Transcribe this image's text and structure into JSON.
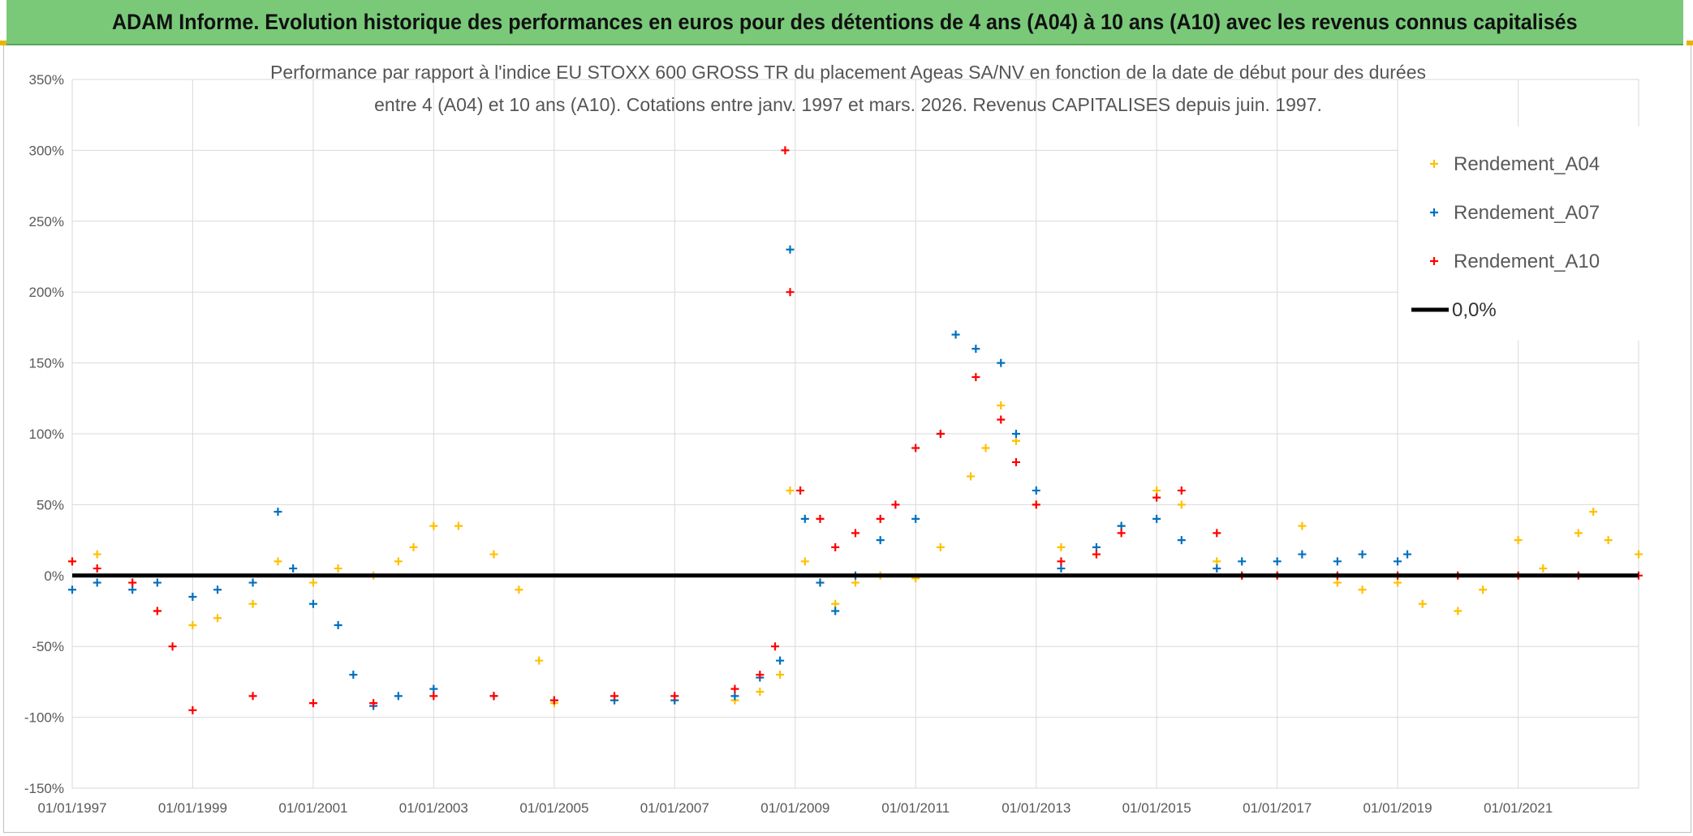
{
  "header": {
    "banner_title": "ADAM Informe. Evolution historique des performances en euros pour des détentions de 4 ans (A04) à 10 ans (A10) avec les revenus connus capitalisés"
  },
  "colors": {
    "banner_bg": "#79c979",
    "series_a04": "#ffc000",
    "series_a07": "#0070c0",
    "series_a10": "#ff0000",
    "zero_line": "#000000"
  },
  "chart_data": {
    "type": "scatter",
    "title_line1": "Performance par rapport à l'indice EU STOXX 600 GROSS TR  du placement Ageas SA/NV en fonction de la date de début pour des durées",
    "title_line2": "entre 4 (A04) et 10 ans (A10). Cotations entre janv. 1997 et mars. 2026. Revenus CAPITALISES depuis juin. 1997.",
    "xlabel": "",
    "ylabel": "",
    "y_unit": "%",
    "ylim": [
      -150,
      350
    ],
    "yticks": [
      -150,
      -100,
      -50,
      0,
      50,
      100,
      150,
      200,
      250,
      300,
      350
    ],
    "ytick_labels": [
      "-150%",
      "-100%",
      "-50%",
      "0%",
      "50%",
      "100%",
      "150%",
      "200%",
      "250%",
      "300%",
      "350%"
    ],
    "xlim": [
      "1997-01-01",
      "2023-01-01"
    ],
    "xticks": [
      "1997-01-01",
      "1999-01-01",
      "2001-01-01",
      "2003-01-01",
      "2005-01-01",
      "2007-01-01",
      "2009-01-01",
      "2011-01-01",
      "2013-01-01",
      "2015-01-01",
      "2017-01-01",
      "2019-01-01",
      "2021-01-01"
    ],
    "xtick_labels": [
      "01/01/1997",
      "01/01/1999",
      "01/01/2001",
      "01/01/2003",
      "01/01/2005",
      "01/01/2007",
      "01/01/2009",
      "01/01/2011",
      "01/01/2013",
      "01/01/2015",
      "01/01/2017",
      "01/01/2019",
      "01/01/2021"
    ],
    "grid": true,
    "legend_position": "top-right",
    "legend": [
      "Rendement_A04",
      "Rendement_A07",
      "Rendement_A10",
      "0,0%"
    ],
    "zero_line": {
      "name": "0,0%",
      "value": 0
    },
    "series": [
      {
        "name": "Rendement_A04",
        "color": "#ffc000",
        "x": [
          "1997-01-01",
          "1997-06-01",
          "1998-01-01",
          "1998-06-01",
          "1999-01-01",
          "1999-06-01",
          "2000-01-01",
          "2000-06-01",
          "2001-01-01",
          "2001-06-01",
          "2002-01-01",
          "2002-06-01",
          "2002-09-01",
          "2003-01-01",
          "2003-06-01",
          "2004-01-01",
          "2004-06-01",
          "2004-10-01",
          "2005-01-01",
          "2006-01-01",
          "2007-01-01",
          "2008-01-01",
          "2008-06-01",
          "2008-10-01",
          "2008-12-01",
          "2009-03-01",
          "2009-06-01",
          "2009-09-01",
          "2010-01-01",
          "2010-06-01",
          "2011-01-01",
          "2011-06-01",
          "2011-12-01",
          "2012-03-01",
          "2012-06-01",
          "2012-09-01",
          "2013-01-01",
          "2013-06-01",
          "2014-01-01",
          "2014-06-01",
          "2015-01-01",
          "2015-06-01",
          "2016-01-01",
          "2016-06-01",
          "2017-01-01",
          "2017-06-01",
          "2018-01-01",
          "2018-06-01",
          "2019-01-01",
          "2019-06-01",
          "2020-01-01",
          "2020-06-01",
          "2021-01-01",
          "2021-06-01",
          "2022-01-01",
          "2022-04-01",
          "2022-07-01",
          "2023-01-01"
        ],
        "y": [
          10,
          15,
          -5,
          -25,
          -35,
          -30,
          -20,
          10,
          -5,
          5,
          0,
          10,
          20,
          35,
          35,
          15,
          -10,
          -60,
          -90,
          -88,
          -88,
          -88,
          -82,
          -70,
          60,
          10,
          -5,
          -20,
          -5,
          0,
          -2,
          20,
          70,
          90,
          120,
          95,
          50,
          20,
          15,
          35,
          60,
          50,
          10,
          0,
          0,
          35,
          -5,
          -10,
          -5,
          -20,
          -25,
          -10,
          25,
          5,
          30,
          45,
          25,
          15
        ]
      },
      {
        "name": "Rendement_A07",
        "color": "#0070c0",
        "x": [
          "1997-01-01",
          "1997-06-01",
          "1998-01-01",
          "1998-06-01",
          "1999-01-01",
          "1999-06-01",
          "2000-01-01",
          "2000-06-01",
          "2000-09-01",
          "2001-01-01",
          "2001-06-01",
          "2001-09-01",
          "2002-01-01",
          "2002-06-01",
          "2003-01-01",
          "2004-01-01",
          "2005-01-01",
          "2006-01-01",
          "2007-01-01",
          "2008-01-01",
          "2008-06-01",
          "2008-10-01",
          "2008-12-01",
          "2009-03-01",
          "2009-06-01",
          "2009-09-01",
          "2010-01-01",
          "2010-06-01",
          "2011-01-01",
          "2011-06-01",
          "2011-09-01",
          "2012-01-01",
          "2012-06-01",
          "2012-09-01",
          "2013-01-01",
          "2013-06-01",
          "2014-01-01",
          "2014-06-01",
          "2015-01-01",
          "2015-06-01",
          "2016-01-01",
          "2016-06-01",
          "2017-01-01",
          "2017-06-01",
          "2018-01-01",
          "2018-06-01",
          "2019-01-01",
          "2019-03-01"
        ],
        "y": [
          -10,
          -5,
          -10,
          -5,
          -15,
          -10,
          -5,
          45,
          5,
          -20,
          -35,
          -70,
          -92,
          -85,
          -80,
          -85,
          -88,
          -88,
          -88,
          -85,
          -72,
          -60,
          230,
          40,
          -5,
          -25,
          0,
          25,
          40,
          100,
          170,
          160,
          150,
          100,
          60,
          5,
          20,
          35,
          40,
          25,
          5,
          10,
          10,
          15,
          10,
          15,
          10,
          15
        ]
      },
      {
        "name": "Rendement_A10",
        "color": "#ff0000",
        "x": [
          "1997-01-01",
          "1997-06-01",
          "1998-01-01",
          "1998-06-01",
          "1998-09-01",
          "1999-01-01",
          "2000-01-01",
          "2001-01-01",
          "2002-01-01",
          "2003-01-01",
          "2004-01-01",
          "2005-01-01",
          "2006-01-01",
          "2007-01-01",
          "2008-01-01",
          "2008-06-01",
          "2008-09-01",
          "2008-11-01",
          "2008-12-01",
          "2009-02-01",
          "2009-06-01",
          "2009-09-01",
          "2010-01-01",
          "2010-06-01",
          "2010-09-01",
          "2011-01-01",
          "2011-06-01",
          "2012-01-01",
          "2012-06-01",
          "2012-09-01",
          "2013-01-01",
          "2013-06-01",
          "2014-01-01",
          "2014-06-01",
          "2015-01-01",
          "2015-06-01",
          "2016-01-01",
          "2016-06-01",
          "2017-01-01",
          "2018-01-01",
          "2019-01-01",
          "2020-01-01",
          "2021-01-01",
          "2022-01-01",
          "2023-01-01"
        ],
        "y": [
          10,
          5,
          -5,
          -25,
          -50,
          -95,
          -85,
          -90,
          -90,
          -85,
          -85,
          -88,
          -85,
          -85,
          -80,
          -70,
          -50,
          300,
          200,
          60,
          40,
          20,
          30,
          40,
          50,
          90,
          100,
          140,
          110,
          80,
          50,
          10,
          15,
          30,
          55,
          60,
          30,
          0,
          0,
          0,
          0,
          0,
          0,
          0,
          0
        ]
      }
    ]
  }
}
